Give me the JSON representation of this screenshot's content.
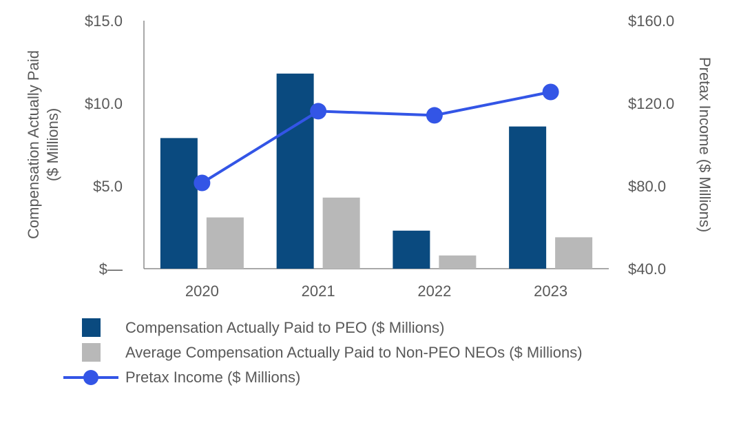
{
  "chart_data": {
    "type": "bar+line",
    "categories": [
      "2020",
      "2021",
      "2022",
      "2023"
    ],
    "series": [
      {
        "name": "Compensation Actually Paid to PEO ($ Millions)",
        "kind": "bar",
        "axis": "left",
        "color": "#0A4A7F",
        "values": [
          7.9,
          11.8,
          2.3,
          8.6
        ]
      },
      {
        "name": "Average Compensation Actually Paid to Non-PEO NEOs ($ Millions)",
        "kind": "bar",
        "axis": "left",
        "color": "#B8B8B8",
        "values": [
          3.1,
          4.3,
          0.8,
          1.9
        ]
      },
      {
        "name": "Pretax Income ($ Millions)",
        "kind": "line",
        "axis": "right",
        "color": "#3355E6",
        "values": [
          81.5,
          116.2,
          114.2,
          125.5
        ]
      }
    ],
    "y_left": {
      "label": "Compensation Actually Paid ($ Millions)",
      "label_lines": [
        "Compensation Actually Paid",
        "($ Millions)"
      ],
      "ylim": [
        0,
        15
      ],
      "ticks": [
        "$15.0",
        "$10.0",
        "$5.0",
        "$—"
      ],
      "tick_values": [
        15,
        10,
        5,
        0
      ]
    },
    "y_right": {
      "label": "Pretax Income ($ Millions)",
      "ylim": [
        40,
        160
      ],
      "ticks": [
        "$160.0",
        "$120.0",
        "$80.0",
        "$40.0"
      ],
      "tick_values": [
        160,
        120,
        80,
        40
      ]
    },
    "legend_position": "bottom-left"
  },
  "legend": {
    "peo_label": "Compensation Actually Paid to PEO ($ Millions)",
    "neo_label": "Average Compensation Actually Paid to Non-PEO NEOs ($ Millions)",
    "pretax_label": "Pretax Income ($ Millions)"
  },
  "colors": {
    "peo": "#0A4A7F",
    "neo": "#B8B8B8",
    "pretax": "#3355E6",
    "axis": "#8C8C8C"
  }
}
